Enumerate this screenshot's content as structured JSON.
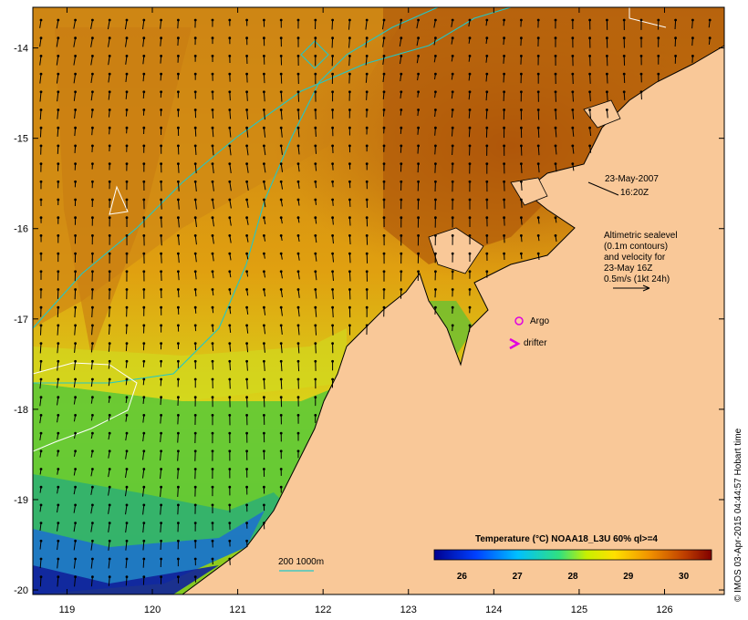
{
  "map": {
    "date_label": "23-May-2007",
    "time_label": "16:20Z",
    "info_lines": [
      "Altimetric sealevel",
      "(0.1m contours)",
      "and velocity for",
      "23-May 16Z",
      "0.5m/s (1kt 24h)"
    ],
    "argo_label": "Argo",
    "drifter_label": "drifter",
    "isobath_label": "200  1000m",
    "colorbar_title": "Temperature (°C) NOAA18_L3U 60% ql>=4",
    "colorbar_ticks": [
      "26",
      "27",
      "28",
      "29",
      "30"
    ],
    "credit": "© IMOS 03-Apr-2015 04:44:57 Hobart time",
    "colors": {
      "land": "#f9c898",
      "argo_marker": "#e000e0",
      "drifter_marker": "#e000e0",
      "isobath": "#20c8c8",
      "contour": "#ffffff"
    }
  },
  "chart_data": {
    "type": "heatmap",
    "variable": "Sea surface temperature",
    "units": "°C",
    "colorbar_range": [
      25.5,
      30.5
    ],
    "x_ticks": [
      119,
      120,
      121,
      122,
      123,
      124,
      125,
      126
    ],
    "y_ticks": [
      -14,
      -15,
      -16,
      -17,
      -18,
      -19,
      -20
    ],
    "x_range": [
      118.6,
      126.7
    ],
    "y_range": [
      -20.05,
      -13.55
    ],
    "vectors": true,
    "markers": [
      {
        "type": "argo",
        "lon": 124.3,
        "lat": -17.04
      },
      {
        "type": "drifter",
        "lon": 124.2,
        "lat": -17.3
      }
    ]
  }
}
